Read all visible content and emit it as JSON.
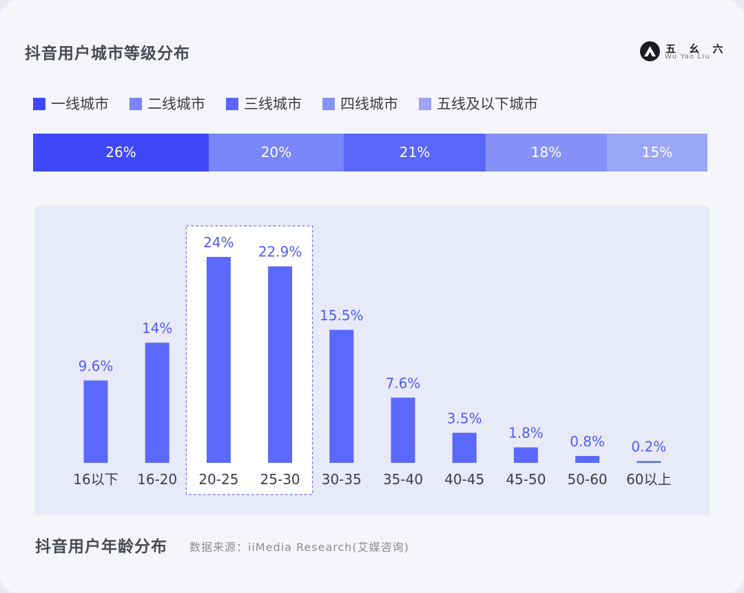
{
  "header": {
    "title": "抖音用户城市等级分布",
    "brand_cn": "五 幺 六",
    "brand_en": "Wu Yao Liu"
  },
  "city_tiers": {
    "legend": [
      {
        "label": "一线城市",
        "color": "#3f48f8"
      },
      {
        "label": "二线城市",
        "color": "#7985f8"
      },
      {
        "label": "三线城市",
        "color": "#5966f7"
      },
      {
        "label": "四线城市",
        "color": "#8792f7"
      },
      {
        "label": "五线及以下城市",
        "color": "#9ba6f6"
      }
    ],
    "segments": [
      {
        "label": "26%",
        "value": 26,
        "color": "#3f48f8"
      },
      {
        "label": "20%",
        "value": 20,
        "color": "#7985f8"
      },
      {
        "label": "21%",
        "value": 21,
        "color": "#5966f7"
      },
      {
        "label": "18%",
        "value": 18,
        "color": "#8792f7"
      },
      {
        "label": "15%",
        "value": 15,
        "color": "#9ba6f6"
      }
    ]
  },
  "chart_data": [
    {
      "type": "bar",
      "title": "抖音用户城市等级分布",
      "orientation": "horizontal-stacked-100",
      "categories": [
        "一线城市",
        "二线城市",
        "三线城市",
        "四线城市",
        "五线及以下城市"
      ],
      "values": [
        26,
        20,
        21,
        18,
        15
      ],
      "unit": "%"
    },
    {
      "type": "bar",
      "title": "抖音用户年龄分布",
      "categories": [
        "16以下",
        "16-20",
        "20-25",
        "25-30",
        "30-35",
        "35-40",
        "40-45",
        "45-50",
        "50-60",
        "60以上"
      ],
      "values": [
        9.6,
        14,
        24,
        22.9,
        15.5,
        7.6,
        3.5,
        1.8,
        0.8,
        0.2
      ],
      "value_labels": [
        "9.6%",
        "14%",
        "24%",
        "22.9%",
        "15.5%",
        "7.6%",
        "3.5%",
        "1.8%",
        "0.8%",
        "0.2%"
      ],
      "highlight_categories": [
        "20-25",
        "25-30"
      ],
      "ylim": [
        0,
        24
      ],
      "xlabel": "",
      "ylabel": "",
      "bar_color": "#5a69f9",
      "label_color": "#4e5cf5",
      "tick_color": "#3a3d47"
    }
  ],
  "footer": {
    "title": "抖音用户年龄分布",
    "source": "数据来源：iiMedia Research(艾媒咨询)"
  }
}
